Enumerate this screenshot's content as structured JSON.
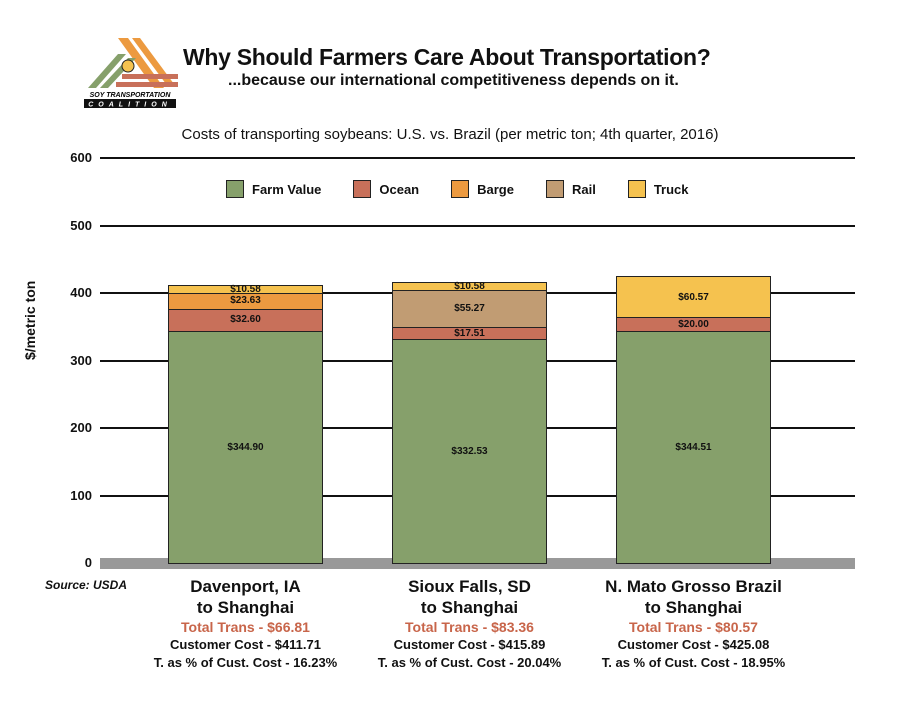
{
  "header": {
    "title": "Why Should Farmers Care About Transportation?",
    "subtitle": "...because our international competitiveness depends on it.",
    "logo_text": [
      "SOY TRANSPORTATION",
      "COALITION"
    ]
  },
  "source": "Source: USDA",
  "colors": {
    "Farm Value": "#86a06b",
    "Ocean": "#c8705a",
    "Barge": "#ec9a40",
    "Rail": "#c19c73",
    "Truck": "#f5c24f",
    "axis_base": "#999999"
  },
  "chart_data": {
    "type": "bar",
    "stacked": true,
    "title": "Costs of transporting soybeans: U.S. vs. Brazil (per metric ton; 4th quarter, 2016)",
    "ylabel": "$/metric ton",
    "ylim": [
      0,
      600
    ],
    "yticks": [
      0,
      100,
      200,
      300,
      400,
      500,
      600
    ],
    "grid": true,
    "legend_placement": "top",
    "legend": [
      "Farm Value",
      "Ocean",
      "Barge",
      "Rail",
      "Truck"
    ],
    "categories": [
      "Davenport, IA to Shanghai",
      "Sioux Falls, SD to Shanghai",
      "N. Mato Grosso Brazil to Shanghai"
    ],
    "series": [
      {
        "name": "Farm Value",
        "values": [
          344.9,
          332.53,
          344.51
        ],
        "labels": [
          "$344.90",
          "$332.53",
          "$344.51"
        ]
      },
      {
        "name": "Ocean",
        "values": [
          32.6,
          17.51,
          20.0
        ],
        "labels": [
          "$32.60",
          "$17.51",
          "$20.00"
        ]
      },
      {
        "name": "Barge",
        "values": [
          23.63,
          0,
          0
        ],
        "labels": [
          "$23.63",
          "",
          ""
        ]
      },
      {
        "name": "Rail",
        "values": [
          0,
          55.27,
          0
        ],
        "labels": [
          "",
          "$55.27",
          ""
        ]
      },
      {
        "name": "Truck",
        "values": [
          10.58,
          10.58,
          60.57
        ],
        "labels": [
          "$10.58",
          "$10.58",
          "$60.57"
        ]
      }
    ],
    "category_details": [
      {
        "line1": "Davenport, IA",
        "line2": "to Shanghai",
        "total_trans": "Total Trans - $66.81",
        "customer_cost": "Customer Cost - $411.71",
        "pct": "T. as % of Cust. Cost - 16.23%"
      },
      {
        "line1": "Sioux Falls, SD",
        "line2": "to Shanghai",
        "total_trans": "Total Trans - $83.36",
        "customer_cost": "Customer Cost - $415.89",
        "pct": "T. as % of Cust. Cost - 20.04%"
      },
      {
        "line1": "N. Mato Grosso Brazil",
        "line2": "to Shanghai",
        "total_trans": "Total Trans - $80.57",
        "customer_cost": "Customer Cost - $425.08",
        "pct": "T. as % of Cust. Cost - 18.95%"
      }
    ]
  }
}
